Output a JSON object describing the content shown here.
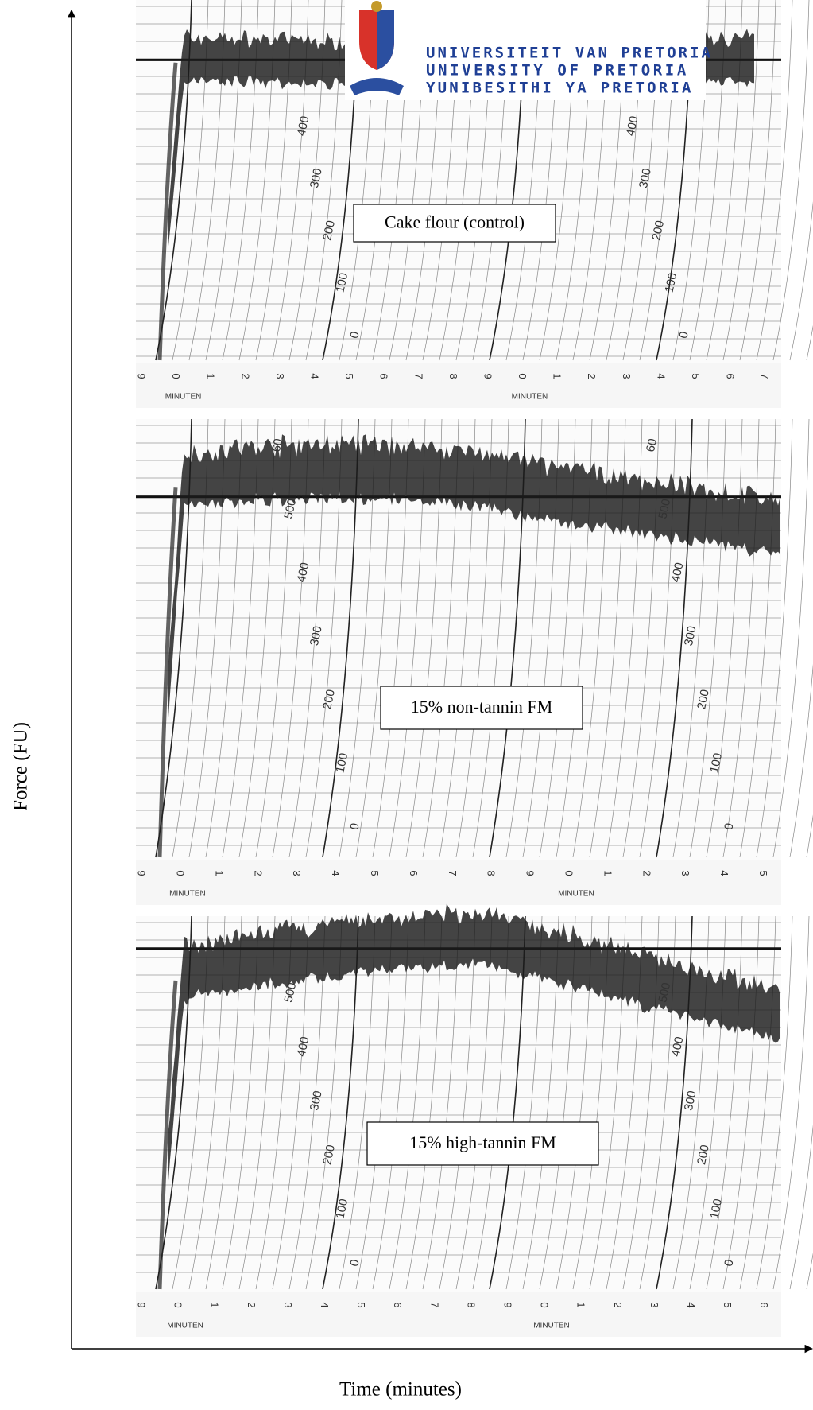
{
  "axes": {
    "y_label": "Force (FU)",
    "x_label": "Time (minutes)"
  },
  "logo": {
    "lines": [
      "UNIVERSITEIT VAN PRETORIA",
      "UNIVERSITY OF PRETORIA",
      "YUNIBESITHI YA PRETORIA"
    ]
  },
  "panels": [
    {
      "label": "Cake flour (control)",
      "minute_labels": [
        "9",
        "0",
        "1",
        "2",
        "3",
        "4",
        "5",
        "6",
        "7",
        "8",
        "9",
        "0",
        "1",
        "2",
        "3",
        "4",
        "5",
        "6",
        "7"
      ],
      "minuten": [
        "MINUTEN",
        "MINUTEN"
      ],
      "force_labels": [
        [
          "400",
          "300",
          "200",
          "100",
          "0"
        ],
        [
          "400",
          "300",
          "200",
          "100",
          "0"
        ]
      ]
    },
    {
      "label": "15% non-tannin FM",
      "minute_labels": [
        "9",
        "0",
        "1",
        "2",
        "3",
        "4",
        "5",
        "6",
        "7",
        "8",
        "9",
        "0",
        "1",
        "2",
        "3",
        "4",
        "5"
      ],
      "minuten": [
        "MINUTEN",
        "MINUTEN"
      ],
      "force_labels": [
        [
          "60",
          "500",
          "400",
          "300",
          "200",
          "100",
          "0"
        ],
        [
          "60",
          "500",
          "400",
          "300",
          "200",
          "100",
          "0"
        ]
      ]
    },
    {
      "label": "15% high-tannin FM",
      "minute_labels": [
        "9",
        "0",
        "1",
        "2",
        "3",
        "4",
        "5",
        "6",
        "7",
        "8",
        "9",
        "0",
        "1",
        "2",
        "3",
        "4",
        "5",
        "6"
      ],
      "minuten": [
        "MINUTEN",
        "MINUTEN"
      ],
      "force_labels": [
        [
          "500",
          "400",
          "300",
          "200",
          "100",
          "0"
        ],
        [
          "500",
          "400",
          "300",
          "200",
          "100",
          "0"
        ]
      ]
    }
  ]
}
